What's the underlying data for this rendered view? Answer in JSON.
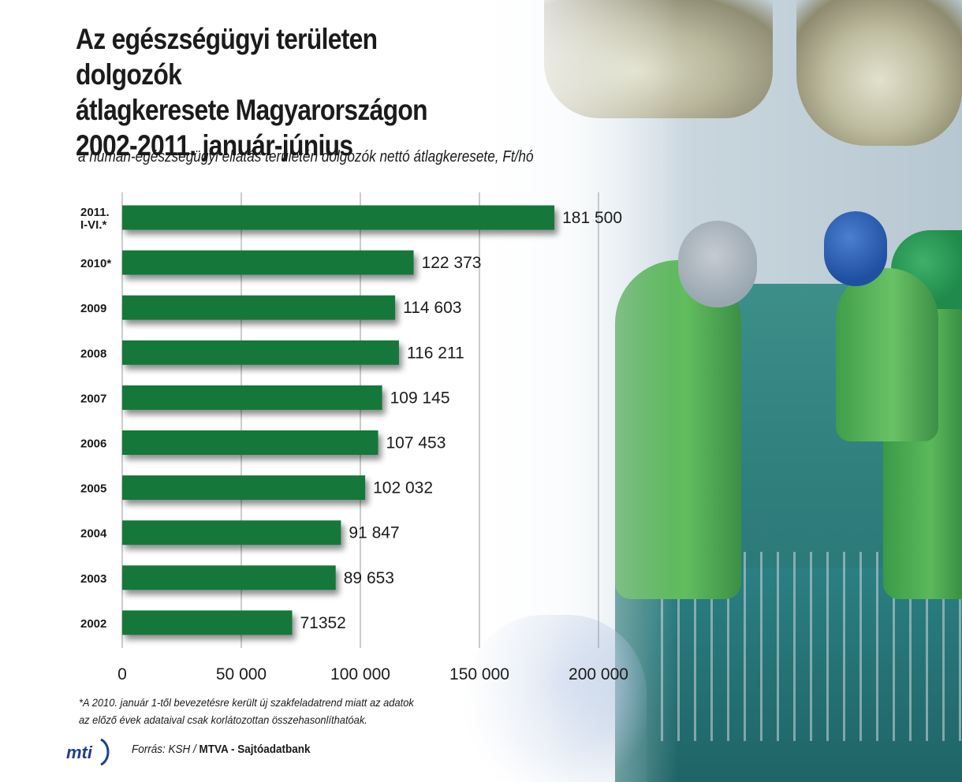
{
  "header": {
    "title_lines": [
      "Az egészségügyi területen dolgozók",
      "átlagkeresete Magyarországon",
      "2002-2011. január-június"
    ],
    "subtitle": "a humán-egészségügyi ellátás területén dolgozók nettó átlagkeresete, Ft/hó"
  },
  "chart_data": {
    "type": "bar",
    "orientation": "horizontal",
    "categories": [
      "2011.\nI-VI.*",
      "2010*",
      "2009",
      "2008",
      "2007",
      "2006",
      "2005",
      "2004",
      "2003",
      "2002"
    ],
    "values": [
      181500,
      122373,
      114603,
      116211,
      109145,
      107453,
      102032,
      91847,
      89653,
      71352
    ],
    "value_labels": [
      "181 500",
      "122 373",
      "114 603",
      "116 211",
      "109 145",
      "107 453",
      "102 032",
      "91 847",
      "89 653",
      "71352"
    ],
    "xticks": [
      0,
      50000,
      100000,
      150000,
      200000
    ],
    "xtick_labels": [
      "0",
      "50 000",
      "100 000",
      "150 000",
      "200 000"
    ],
    "xlim": [
      0,
      200000
    ],
    "grid": true,
    "colors": {
      "bar": "#17773a",
      "grid": "#9a9a9a",
      "text": "#1b1b1b"
    }
  },
  "footer": {
    "note_lines": [
      "*A 2010. január 1-től bevezetésre került új szakfeladatrend miatt az adatok",
      "az előző évek adataival csak korlátozottan összehasonlíthatóak."
    ],
    "source_label": "Forrás: KSH /",
    "source_org": "MTVA - Sajtóadatbank",
    "logo_text": "mti"
  },
  "photo": {
    "icons": [
      "operating-lamp-icon",
      "surgeon-icon",
      "surgical-instruments-icon"
    ]
  }
}
